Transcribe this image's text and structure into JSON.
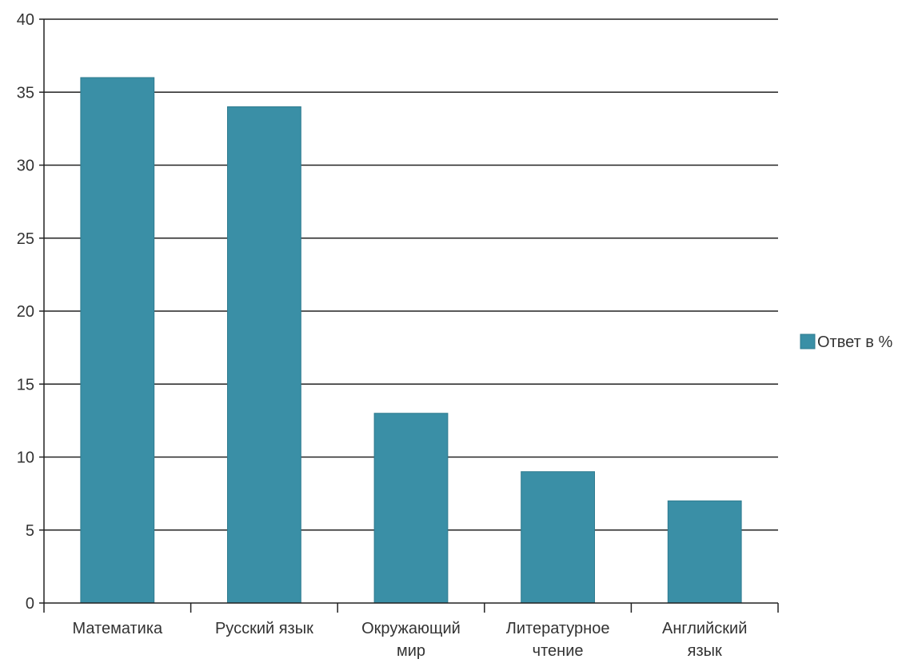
{
  "chart_data": {
    "type": "bar",
    "categories": [
      [
        "Математика"
      ],
      [
        "Русский язык"
      ],
      [
        "Окружающий",
        "мир"
      ],
      [
        "Литературное",
        "чтение"
      ],
      [
        "Английский",
        "язык"
      ]
    ],
    "series": [
      {
        "name": "Ответ в %",
        "values": [
          36,
          34,
          13,
          9,
          7
        ],
        "color": "#3a8fa6"
      }
    ],
    "ylim": [
      0,
      40
    ],
    "yticks": [
      0,
      5,
      10,
      15,
      20,
      25,
      30,
      35,
      40
    ],
    "grid": true,
    "legend_position": "right",
    "colors": {
      "bar": "#3a8fa6",
      "bar_stroke": "#2f7b8f",
      "grid": "#222222",
      "axis": "#222222",
      "text": "#333333"
    }
  }
}
